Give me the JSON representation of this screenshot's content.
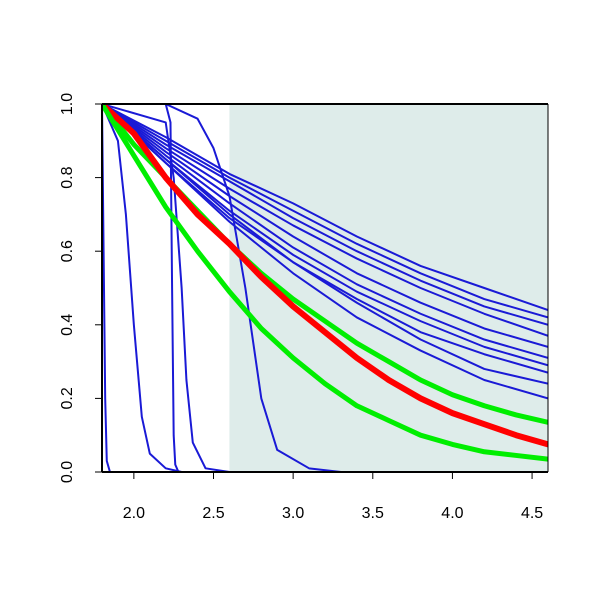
{
  "chart_data": {
    "type": "line",
    "title": "",
    "xlabel": "",
    "ylabel": "",
    "xlim": [
      1.8,
      4.6
    ],
    "ylim": [
      0.0,
      1.0
    ],
    "x_ticks": [
      2.0,
      2.5,
      3.0,
      3.5,
      4.0,
      4.5
    ],
    "x_tick_labels": [
      "2.0",
      "2.5",
      "3.0",
      "3.5",
      "4.0",
      "4.5"
    ],
    "y_ticks": [
      0.0,
      0.2,
      0.4,
      0.6,
      0.8,
      1.0
    ],
    "y_tick_labels": [
      "0.0",
      "0.2",
      "0.4",
      "0.6",
      "0.8",
      "1.0"
    ],
    "grid": false,
    "legend": "none",
    "shaded_region": {
      "x": [
        2.6,
        4.6
      ],
      "y": [
        0.0,
        1.0
      ],
      "color": "#deecea"
    },
    "colors": {
      "blue": "#1a1ad6",
      "red": "#ff0000",
      "green": "#00ee00",
      "axis": "#000000"
    },
    "series": [
      {
        "color": "blue",
        "width": 2,
        "x": [
          1.8,
          1.81,
          1.82,
          1.83,
          1.85
        ],
        "y": [
          1.0,
          0.6,
          0.2,
          0.03,
          0.0
        ]
      },
      {
        "color": "blue",
        "width": 2,
        "x": [
          1.8,
          1.9,
          1.95,
          2.0,
          2.05,
          2.1,
          2.2,
          2.3
        ],
        "y": [
          1.0,
          0.9,
          0.7,
          0.4,
          0.15,
          0.05,
          0.01,
          0.0
        ]
      },
      {
        "color": "blue",
        "width": 2,
        "x": [
          1.8,
          2.2,
          2.23,
          2.24,
          2.25,
          2.26,
          2.28
        ],
        "y": [
          1.0,
          1.0,
          0.95,
          0.5,
          0.1,
          0.02,
          0.0
        ]
      },
      {
        "color": "blue",
        "width": 2,
        "x": [
          1.8,
          2.2,
          2.25,
          2.3,
          2.33,
          2.37,
          2.45,
          2.6
        ],
        "y": [
          1.0,
          0.95,
          0.8,
          0.5,
          0.25,
          0.08,
          0.01,
          0.0
        ]
      },
      {
        "color": "blue",
        "width": 2,
        "x": [
          1.8,
          2.2,
          2.4,
          2.5,
          2.6,
          2.7,
          2.75,
          2.8,
          2.9,
          3.1,
          3.3
        ],
        "y": [
          1.0,
          1.0,
          0.96,
          0.88,
          0.75,
          0.5,
          0.35,
          0.2,
          0.06,
          0.01,
          0.0
        ]
      },
      {
        "color": "blue",
        "width": 2,
        "x": [
          1.8,
          2.2,
          2.6,
          3.0,
          3.4,
          3.8,
          4.2,
          4.6
        ],
        "y": [
          1.0,
          0.91,
          0.81,
          0.73,
          0.64,
          0.56,
          0.5,
          0.44
        ]
      },
      {
        "color": "blue",
        "width": 2,
        "x": [
          1.8,
          2.2,
          2.6,
          3.0,
          3.4,
          3.8,
          4.2,
          4.6
        ],
        "y": [
          1.0,
          0.9,
          0.8,
          0.71,
          0.62,
          0.54,
          0.47,
          0.42
        ]
      },
      {
        "color": "blue",
        "width": 2,
        "x": [
          1.8,
          2.2,
          2.6,
          3.0,
          3.4,
          3.8,
          4.2,
          4.6
        ],
        "y": [
          1.0,
          0.89,
          0.79,
          0.69,
          0.6,
          0.52,
          0.45,
          0.4
        ]
      },
      {
        "color": "blue",
        "width": 2,
        "x": [
          1.8,
          2.2,
          2.6,
          3.0,
          3.4,
          3.8,
          4.2,
          4.6
        ],
        "y": [
          1.0,
          0.88,
          0.77,
          0.67,
          0.58,
          0.5,
          0.43,
          0.37
        ]
      },
      {
        "color": "blue",
        "width": 2,
        "x": [
          1.8,
          2.2,
          2.6,
          3.0,
          3.4,
          3.8,
          4.2,
          4.6
        ],
        "y": [
          1.0,
          0.87,
          0.75,
          0.64,
          0.54,
          0.46,
          0.39,
          0.34
        ]
      },
      {
        "color": "blue",
        "width": 2,
        "x": [
          1.8,
          2.2,
          2.6,
          3.0,
          3.4,
          3.8,
          4.2,
          4.6
        ],
        "y": [
          1.0,
          0.86,
          0.73,
          0.61,
          0.51,
          0.43,
          0.36,
          0.31
        ]
      },
      {
        "color": "blue",
        "width": 2,
        "x": [
          1.8,
          2.2,
          2.6,
          3.0,
          3.4,
          3.8,
          4.2,
          4.6
        ],
        "y": [
          1.0,
          0.85,
          0.71,
          0.59,
          0.49,
          0.41,
          0.34,
          0.29
        ]
      },
      {
        "color": "blue",
        "width": 2,
        "x": [
          1.8,
          2.2,
          2.6,
          3.0,
          3.4,
          3.8,
          4.2,
          4.6
        ],
        "y": [
          1.0,
          0.84,
          0.69,
          0.57,
          0.47,
          0.38,
          0.32,
          0.27
        ]
      },
      {
        "color": "blue",
        "width": 2,
        "x": [
          1.8,
          2.2,
          2.6,
          3.0,
          3.4,
          3.8,
          4.2,
          4.6
        ],
        "y": [
          1.0,
          0.85,
          0.7,
          0.57,
          0.46,
          0.36,
          0.28,
          0.24
        ]
      },
      {
        "color": "blue",
        "width": 2,
        "x": [
          1.8,
          2.2,
          2.6,
          3.0,
          3.4,
          3.8,
          4.2,
          4.6
        ],
        "y": [
          1.0,
          0.84,
          0.68,
          0.54,
          0.42,
          0.33,
          0.25,
          0.2
        ]
      },
      {
        "color": "green",
        "width": 5,
        "x": [
          1.8,
          2.0,
          2.2,
          2.4,
          2.6,
          2.8,
          3.0,
          3.2,
          3.4,
          3.6,
          3.8,
          4.0,
          4.2,
          4.4,
          4.6
        ],
        "y": [
          1.0,
          0.89,
          0.8,
          0.71,
          0.62,
          0.54,
          0.47,
          0.41,
          0.35,
          0.3,
          0.25,
          0.21,
          0.18,
          0.155,
          0.135
        ]
      },
      {
        "color": "red",
        "width": 6,
        "x": [
          1.8,
          2.0,
          2.2,
          2.4,
          2.6,
          2.8,
          3.0,
          3.2,
          3.4,
          3.6,
          3.8,
          4.0,
          4.2,
          4.4,
          4.6
        ],
        "y": [
          1.0,
          0.92,
          0.8,
          0.7,
          0.62,
          0.53,
          0.45,
          0.38,
          0.31,
          0.25,
          0.2,
          0.16,
          0.13,
          0.1,
          0.075
        ]
      },
      {
        "color": "green",
        "width": 5,
        "x": [
          1.8,
          2.0,
          2.2,
          2.4,
          2.6,
          2.8,
          3.0,
          3.2,
          3.4,
          3.6,
          3.8,
          4.0,
          4.2,
          4.4,
          4.6
        ],
        "y": [
          1.0,
          0.86,
          0.72,
          0.6,
          0.49,
          0.39,
          0.31,
          0.24,
          0.18,
          0.14,
          0.1,
          0.075,
          0.055,
          0.045,
          0.035
        ]
      }
    ]
  }
}
